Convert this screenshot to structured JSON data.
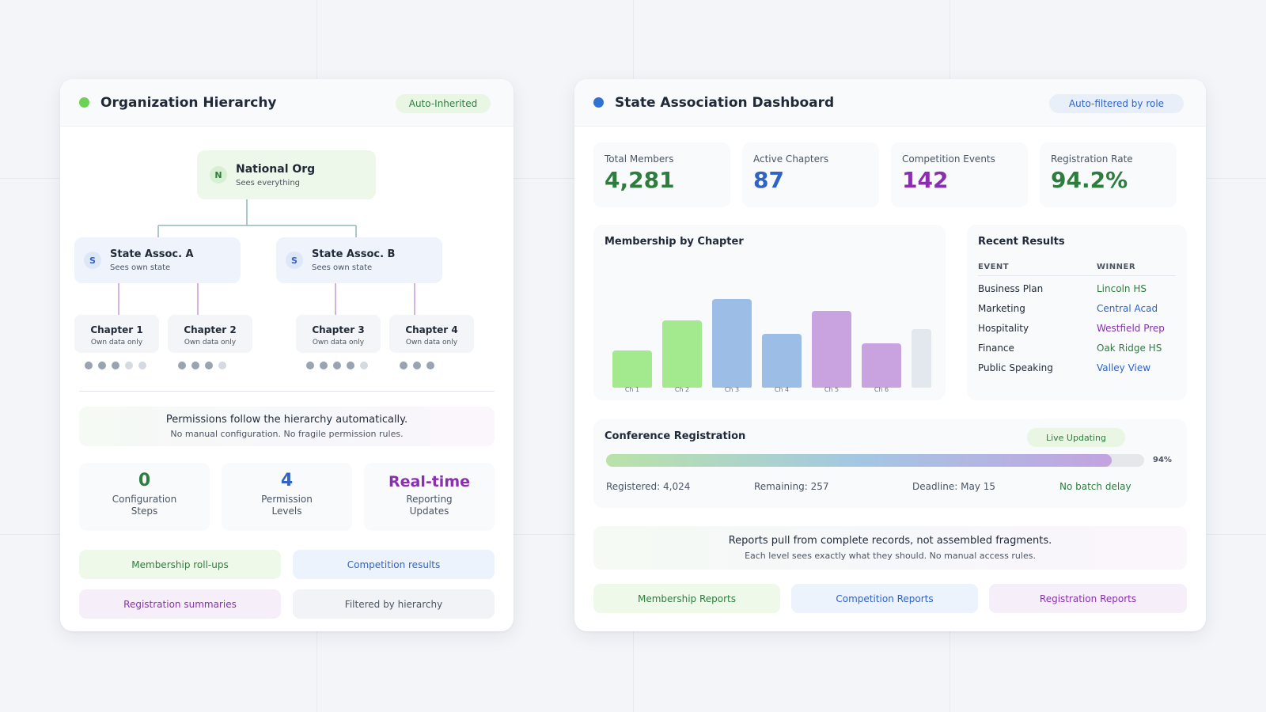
{
  "left_card": {
    "title": "Organization Hierarchy",
    "pill": "Auto-Inherited",
    "national": {
      "badge": "N",
      "title": "National Org",
      "sub": "Sees everything"
    },
    "states": [
      {
        "badge": "S",
        "title": "State Assoc. A",
        "sub": "Sees own state"
      },
      {
        "badge": "S",
        "title": "State Assoc. B",
        "sub": "Sees own state"
      }
    ],
    "chapters": [
      {
        "title": "Chapter 1",
        "sub": "Own data only"
      },
      {
        "title": "Chapter 2",
        "sub": "Own data only"
      },
      {
        "title": "Chapter 3",
        "sub": "Own data only"
      },
      {
        "title": "Chapter 4",
        "sub": "Own data only"
      }
    ],
    "permissions": {
      "line1": "Permissions follow the hierarchy automatically.",
      "line2": "No manual configuration. No fragile permission rules."
    },
    "stats": [
      {
        "value": "0",
        "label1": "Configuration",
        "label2": "Steps",
        "color": "#2e7d3e"
      },
      {
        "value": "4",
        "label1": "Permission",
        "label2": "Levels",
        "color": "#2f63c6"
      },
      {
        "value": "Real-time",
        "label1": "Reporting",
        "label2": "Updates",
        "color": "#8a2fb0"
      }
    ],
    "tags": [
      "Membership roll-ups",
      "Competition results",
      "Registration summaries",
      "Filtered by hierarchy"
    ]
  },
  "right_card": {
    "title": "State Association Dashboard",
    "pill": "Auto-filtered by role",
    "kpis": [
      {
        "label": "Total Members",
        "value": "4,281",
        "color": "#2e7d3e"
      },
      {
        "label": "Active Chapters",
        "value": "87",
        "color": "#2f63c6"
      },
      {
        "label": "Competition Events",
        "value": "142",
        "color": "#8a2fb0"
      },
      {
        "label": "Registration Rate",
        "value": "94.2%",
        "color": "#2e7d3e"
      }
    ],
    "membership_title": "Membership by Chapter",
    "recent": {
      "title": "Recent Results",
      "col_event": "EVENT",
      "col_winner": "WINNER",
      "rows": [
        {
          "event": "Business Plan",
          "winner": "Lincoln HS",
          "color": "#2e7d3e"
        },
        {
          "event": "Marketing",
          "winner": "Central Acad",
          "color": "#2f63c6"
        },
        {
          "event": "Hospitality",
          "winner": "Westfield Prep",
          "color": "#8a2fb0"
        },
        {
          "event": "Finance",
          "winner": "Oak Ridge HS",
          "color": "#2e7d3e"
        },
        {
          "event": "Public Speaking",
          "winner": "Valley View",
          "color": "#2f63c6"
        }
      ]
    },
    "conference": {
      "title": "Conference Registration",
      "pill": "Live Updating",
      "percent_label": "94%",
      "progress": 0.94,
      "registered": "Registered: 4,024",
      "remaining": "Remaining: 257",
      "deadline": "Deadline: May 15",
      "batch": "No batch delay"
    },
    "reports": {
      "line1": "Reports pull from complete records, not assembled fragments.",
      "line2": "Each level sees exactly what they should. No manual access rules."
    },
    "report_buttons": [
      "Membership Reports",
      "Competition Reports",
      "Registration Reports"
    ]
  },
  "chart_data": {
    "type": "bar",
    "title": "Membership by Chapter",
    "categories": [
      "Ch 1",
      "Ch 2",
      "Ch 3",
      "Ch 4",
      "Ch 5",
      "Ch 6",
      ""
    ],
    "values": [
      42,
      76,
      100,
      61,
      87,
      50,
      66
    ],
    "colors": [
      "#a3ea8e",
      "#a3ea8e",
      "#9bbde6",
      "#9bbde6",
      "#c9a2e0",
      "#c9a2e0",
      "#e3e7ee"
    ],
    "ylim": [
      0,
      100
    ],
    "grid": false
  }
}
